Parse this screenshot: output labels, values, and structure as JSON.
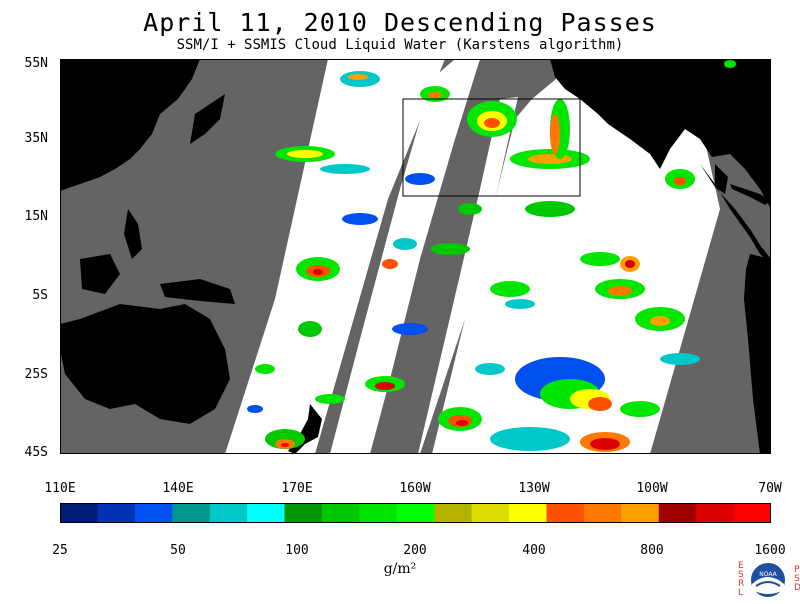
{
  "title": "April 11, 2010  Descending Passes",
  "subtitle": "SSM/I + SSMIS Cloud Liquid Water (Karstens algorithm)",
  "lat_labels": [
    "55N",
    "35N",
    "15N",
    "5S",
    "25S",
    "45S"
  ],
  "lon_labels": [
    "110E",
    "140E",
    "170E",
    "160W",
    "130W",
    "100W",
    "70W"
  ],
  "colorbar": {
    "colors": [
      "#001e78",
      "#0032b4",
      "#0050f0",
      "#00968c",
      "#00c8c8",
      "#00ffff",
      "#009600",
      "#00c800",
      "#00e600",
      "#00ff00",
      "#b4b400",
      "#dcdc00",
      "#ffff00",
      "#ff5000",
      "#ff7800",
      "#ffa000",
      "#a00000",
      "#dc0000",
      "#ff0000"
    ],
    "labels": [
      "25",
      "50",
      "100",
      "200",
      "400",
      "800",
      "1600"
    ]
  },
  "units": "g/m²",
  "logo": {
    "left_letters": "ESRL",
    "right_letters": "PSD",
    "text": "NOAA"
  }
}
